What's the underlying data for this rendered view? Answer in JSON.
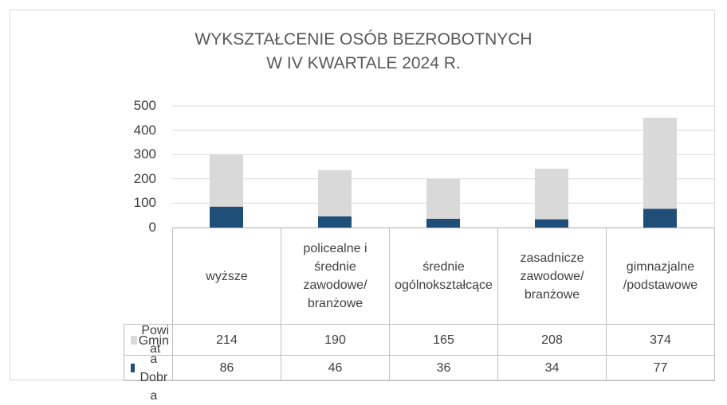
{
  "chart_data": {
    "type": "bar",
    "stacked": true,
    "title": [
      "WYKSZTAŁCENIE OSÓB BEZROBOTNYCH",
      "W IV KWARTALE 2024 R."
    ],
    "categories": [
      "wyższe",
      "policealne i średnie zawodowe/ branżowe",
      "średnie ogólnokształcące",
      "zasadnicze zawodowe/ branżowe",
      "gimnazjalne /podstawowe"
    ],
    "series": [
      {
        "name": "Gmina Dobra",
        "color": "#1f4e79",
        "values": [
          86,
          46,
          36,
          34,
          77
        ]
      },
      {
        "name": "Powiat",
        "color": "#d9d9d9",
        "values": [
          214,
          190,
          165,
          208,
          374
        ]
      }
    ],
    "ylim": [
      0,
      500
    ],
    "yticks": [
      0,
      100,
      200,
      300,
      400,
      500
    ],
    "grid": true
  }
}
